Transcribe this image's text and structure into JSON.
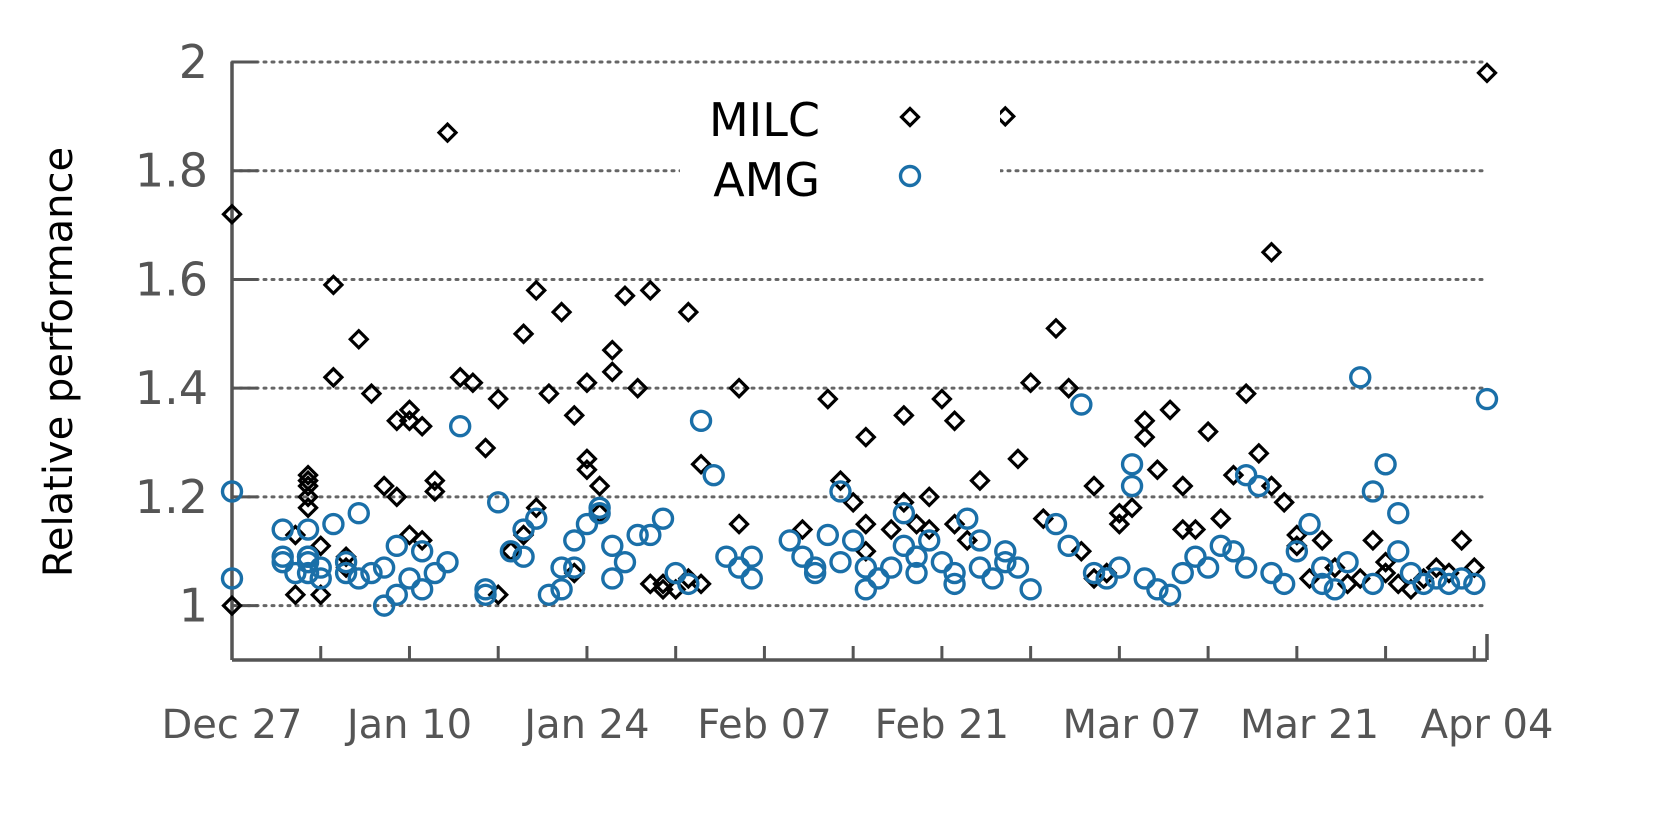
{
  "chart_data": {
    "type": "scatter",
    "ylabel": "Relative performance",
    "xlabel": "",
    "title": "",
    "ylim": [
      0.9,
      2.0
    ],
    "xlim": [
      "Dec 27",
      "Apr 04"
    ],
    "yticks": [
      "1",
      "1.2",
      "1.4",
      "1.6",
      "1.8",
      "2"
    ],
    "xticks": [
      "Dec 27",
      "Jan 10",
      "Jan 24",
      "Feb 07",
      "Feb 21",
      "Mar 07",
      "Mar 21",
      "Apr 04"
    ],
    "grid": "horizontal dotted",
    "legend_position": "top-center",
    "colors": {
      "MILC": "#000000",
      "AMG": "#1a6fa8",
      "axis": "#555555",
      "grid": "#666666"
    },
    "series": [
      {
        "name": "MILC",
        "marker": "diamond",
        "x": [
          "Dec 27",
          "Dec 27",
          "Jan 01",
          "Jan 01",
          "Jan 02",
          "Jan 02",
          "Jan 02",
          "Jan 02",
          "Jan 02",
          "Jan 03",
          "Jan 03",
          "Jan 04",
          "Jan 04",
          "Jan 05",
          "Jan 05",
          "Jan 06",
          "Jan 07",
          "Jan 08",
          "Jan 09",
          "Jan 09",
          "Jan 10",
          "Jan 10",
          "Jan 10",
          "Jan 11",
          "Jan 11",
          "Jan 12",
          "Jan 12",
          "Jan 13",
          "Jan 14",
          "Jan 15",
          "Jan 16",
          "Jan 17",
          "Jan 17",
          "Jan 18",
          "Jan 19",
          "Jan 19",
          "Jan 20",
          "Jan 20",
          "Jan 21",
          "Jan 22",
          "Jan 23",
          "Jan 23",
          "Jan 24",
          "Jan 24",
          "Jan 24",
          "Jan 25",
          "Jan 25",
          "Jan 26",
          "Jan 26",
          "Jan 27",
          "Jan 28",
          "Jan 29",
          "Jan 29",
          "Jan 30",
          "Jan 30",
          "Jan 31",
          "Feb 01",
          "Feb 01",
          "Feb 02",
          "Feb 02",
          "Feb 05",
          "Feb 05",
          "Feb 10",
          "Feb 12",
          "Feb 13",
          "Feb 14",
          "Feb 15",
          "Feb 15",
          "Feb 15",
          "Feb 17",
          "Feb 18",
          "Feb 18",
          "Feb 19",
          "Feb 20",
          "Feb 20",
          "Feb 21",
          "Feb 22",
          "Feb 22",
          "Feb 23",
          "Feb 24",
          "Feb 26",
          "Feb 27",
          "Feb 28",
          "Feb 29",
          "Mar 01",
          "Mar 02",
          "Mar 03",
          "Mar 04",
          "Mar 04",
          "Mar 05",
          "Mar 06",
          "Mar 06",
          "Mar 07",
          "Mar 08",
          "Mar 08",
          "Mar 09",
          "Mar 10",
          "Mar 11",
          "Mar 11",
          "Mar 12",
          "Mar 13",
          "Mar 14",
          "Mar 15",
          "Mar 16",
          "Mar 17",
          "Mar 18",
          "Mar 18",
          "Mar 19",
          "Mar 20",
          "Mar 20",
          "Mar 21",
          "Mar 22",
          "Mar 23",
          "Mar 24",
          "Mar 25",
          "Mar 26",
          "Mar 27",
          "Mar 27",
          "Mar 28",
          "Mar 29",
          "Mar 30",
          "Mar 31",
          "Apr 01",
          "Apr 02",
          "Apr 03",
          "Apr 04"
        ],
        "y": [
          1.72,
          1.0,
          1.02,
          1.13,
          1.2,
          1.24,
          1.22,
          1.18,
          1.23,
          1.11,
          1.02,
          1.59,
          1.42,
          1.07,
          1.09,
          1.49,
          1.39,
          1.22,
          1.2,
          1.34,
          1.36,
          1.13,
          1.34,
          1.33,
          1.12,
          1.23,
          1.21,
          1.87,
          1.42,
          1.41,
          1.29,
          1.38,
          1.02,
          1.1,
          1.13,
          1.5,
          1.18,
          1.58,
          1.39,
          1.54,
          1.35,
          1.06,
          1.27,
          1.25,
          1.41,
          1.22,
          1.17,
          1.47,
          1.43,
          1.57,
          1.4,
          1.58,
          1.04,
          1.03,
          1.04,
          1.03,
          1.05,
          1.54,
          1.04,
          1.26,
          1.4,
          1.15,
          1.14,
          1.38,
          1.23,
          1.19,
          1.31,
          1.1,
          1.15,
          1.14,
          1.35,
          1.19,
          1.15,
          1.14,
          1.2,
          1.38,
          1.15,
          1.34,
          1.12,
          1.23,
          1.9,
          1.27,
          1.41,
          1.16,
          1.51,
          1.4,
          1.1,
          1.05,
          1.22,
          1.06,
          1.15,
          1.17,
          1.18,
          1.34,
          1.31,
          1.25,
          1.36,
          1.22,
          1.14,
          1.14,
          1.32,
          1.16,
          1.24,
          1.39,
          1.28,
          1.65,
          1.22,
          1.19,
          1.13,
          1.11,
          1.05,
          1.12,
          1.07,
          1.04,
          1.05,
          1.12,
          1.06,
          1.08,
          1.04,
          1.03,
          1.05,
          1.07,
          1.06,
          1.12,
          1.07,
          1.98
        ]
      },
      {
        "name": "AMG",
        "marker": "circle",
        "x": [
          "Dec 27",
          "Dec 27",
          "Dec 31",
          "Dec 31",
          "Dec 31",
          "Jan 01",
          "Jan 02",
          "Jan 02",
          "Jan 02",
          "Jan 02",
          "Jan 02",
          "Jan 03",
          "Jan 03",
          "Jan 04",
          "Jan 05",
          "Jan 05",
          "Jan 06",
          "Jan 06",
          "Jan 07",
          "Jan 08",
          "Jan 08",
          "Jan 09",
          "Jan 09",
          "Jan 10",
          "Jan 11",
          "Jan 11",
          "Jan 12",
          "Jan 13",
          "Jan 14",
          "Jan 16",
          "Jan 16",
          "Jan 17",
          "Jan 18",
          "Jan 19",
          "Jan 19",
          "Jan 20",
          "Jan 21",
          "Jan 22",
          "Jan 22",
          "Jan 23",
          "Jan 23",
          "Jan 24",
          "Jan 25",
          "Jan 25",
          "Jan 26",
          "Jan 26",
          "Jan 27",
          "Jan 28",
          "Jan 29",
          "Jan 30",
          "Jan 31",
          "Feb 01",
          "Feb 02",
          "Feb 03",
          "Feb 04",
          "Feb 05",
          "Feb 06",
          "Feb 06",
          "Feb 09",
          "Feb 10",
          "Feb 11",
          "Feb 11",
          "Feb 12",
          "Feb 13",
          "Feb 13",
          "Feb 14",
          "Feb 15",
          "Feb 15",
          "Feb 16",
          "Feb 17",
          "Feb 18",
          "Feb 18",
          "Feb 19",
          "Feb 19",
          "Feb 20",
          "Feb 21",
          "Feb 22",
          "Feb 22",
          "Feb 23",
          "Feb 24",
          "Feb 24",
          "Feb 25",
          "Feb 26",
          "Feb 26",
          "Feb 27",
          "Feb 28",
          "Mar 01",
          "Mar 02",
          "Mar 03",
          "Mar 04",
          "Mar 05",
          "Mar 06",
          "Mar 07",
          "Mar 07",
          "Mar 08",
          "Mar 09",
          "Mar 10",
          "Mar 11",
          "Mar 12",
          "Mar 13",
          "Mar 14",
          "Mar 15",
          "Mar 16",
          "Mar 16",
          "Mar 17",
          "Mar 18",
          "Mar 19",
          "Mar 20",
          "Mar 21",
          "Mar 22",
          "Mar 22",
          "Mar 23",
          "Mar 24",
          "Mar 25",
          "Mar 26",
          "Mar 26",
          "Mar 27",
          "Mar 28",
          "Mar 28",
          "Mar 29",
          "Mar 30",
          "Mar 31",
          "Apr 01",
          "Apr 02",
          "Apr 03",
          "Apr 04"
        ],
        "y": [
          1.21,
          1.05,
          1.14,
          1.09,
          1.08,
          1.06,
          1.14,
          1.09,
          1.06,
          1.08,
          1.09,
          1.07,
          1.05,
          1.15,
          1.08,
          1.06,
          1.17,
          1.05,
          1.06,
          1.07,
          1.0,
          1.02,
          1.11,
          1.05,
          1.03,
          1.1,
          1.06,
          1.08,
          1.33,
          1.03,
          1.02,
          1.19,
          1.1,
          1.14,
          1.09,
          1.16,
          1.02,
          1.07,
          1.03,
          1.12,
          1.07,
          1.15,
          1.18,
          1.17,
          1.11,
          1.05,
          1.08,
          1.13,
          1.13,
          1.16,
          1.06,
          1.04,
          1.34,
          1.24,
          1.09,
          1.07,
          1.09,
          1.05,
          1.12,
          1.09,
          1.07,
          1.06,
          1.13,
          1.21,
          1.08,
          1.12,
          1.03,
          1.07,
          1.05,
          1.07,
          1.17,
          1.11,
          1.09,
          1.06,
          1.12,
          1.08,
          1.04,
          1.06,
          1.16,
          1.12,
          1.07,
          1.05,
          1.08,
          1.1,
          1.07,
          1.03,
          1.15,
          1.11,
          1.37,
          1.06,
          1.05,
          1.07,
          1.22,
          1.26,
          1.05,
          1.03,
          1.02,
          1.06,
          1.09,
          1.07,
          1.11,
          1.1,
          1.24,
          1.07,
          1.22,
          1.06,
          1.04,
          1.1,
          1.15,
          1.07,
          1.04,
          1.03,
          1.08,
          1.42,
          1.21,
          1.04,
          1.26,
          1.1,
          1.17,
          1.06,
          1.04,
          1.05,
          1.04,
          1.05,
          1.04,
          1.38
        ]
      }
    ]
  }
}
